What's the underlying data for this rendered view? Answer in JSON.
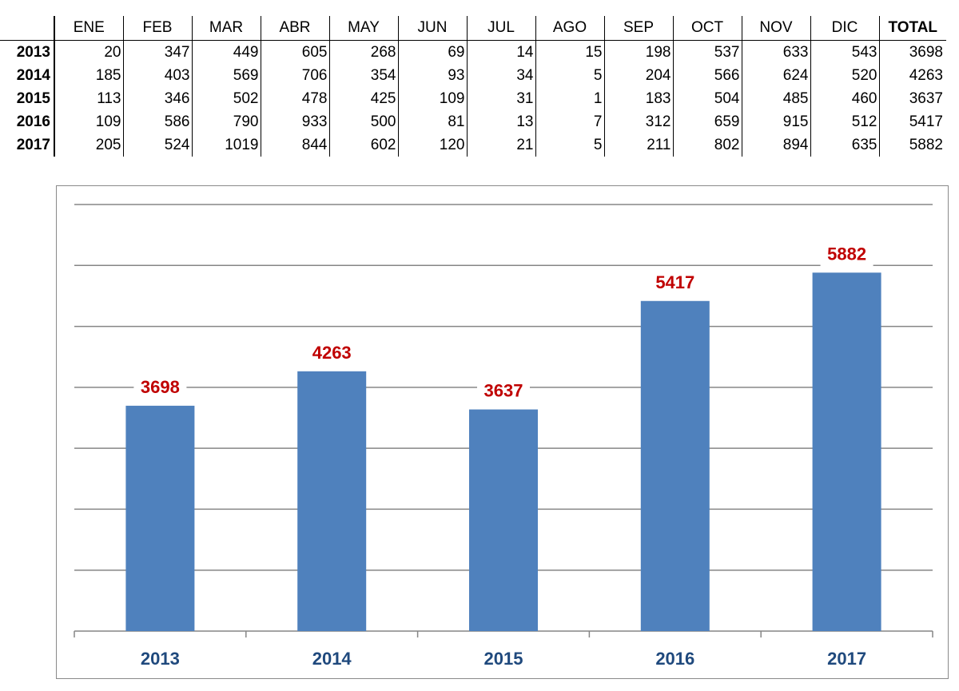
{
  "table": {
    "months": [
      "ENE",
      "FEB",
      "MAR",
      "ABR",
      "MAY",
      "JUN",
      "JUL",
      "AGO",
      "SEP",
      "OCT",
      "NOV",
      "DIC"
    ],
    "total_label": "TOTAL",
    "rows": [
      {
        "year": "2013",
        "values": [
          "20",
          "347",
          "449",
          "605",
          "268",
          "69",
          "14",
          "15",
          "198",
          "537",
          "633",
          "543"
        ],
        "total": "3698"
      },
      {
        "year": "2014",
        "values": [
          "185",
          "403",
          "569",
          "706",
          "354",
          "93",
          "34",
          "5",
          "204",
          "566",
          "624",
          "520"
        ],
        "total": "4263"
      },
      {
        "year": "2015",
        "values": [
          "113",
          "346",
          "502",
          "478",
          "425",
          "109",
          "31",
          "1",
          "183",
          "504",
          "485",
          "460"
        ],
        "total": "3637"
      },
      {
        "year": "2016",
        "values": [
          "109",
          "586",
          "790",
          "933",
          "500",
          "81",
          "13",
          "7",
          "312",
          "659",
          "915",
          "512"
        ],
        "total": "5417"
      },
      {
        "year": "2017",
        "values": [
          "205",
          "524",
          "1019",
          "844",
          "602",
          "120",
          "21",
          "5",
          "211",
          "802",
          "894",
          "635"
        ],
        "total": "5882"
      }
    ]
  },
  "chart_data": {
    "type": "bar",
    "categories": [
      "2013",
      "2014",
      "2015",
      "2016",
      "2017"
    ],
    "values": [
      3698,
      4263,
      3637,
      5417,
      5882
    ],
    "data_labels": [
      "3698",
      "4263",
      "3637",
      "5417",
      "5882"
    ],
    "ylim": [
      0,
      7000
    ],
    "y_gridline_step": 1000,
    "y_tick_labels_shown": false,
    "grid": true,
    "legend": "none",
    "colors": {
      "bar": "#4f81bd",
      "data_label": "#c00000",
      "category_label": "#1f497d",
      "gridline": "#868686"
    }
  }
}
